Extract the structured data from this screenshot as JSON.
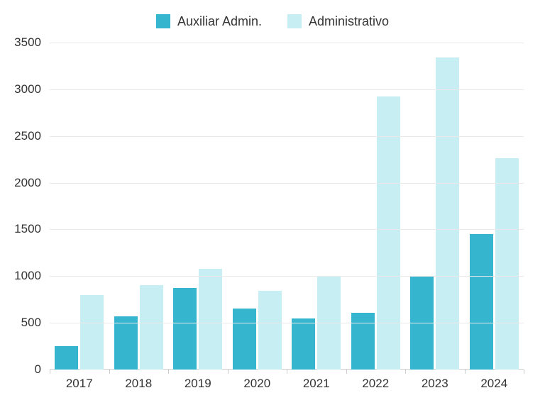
{
  "chart": {
    "type": "bar",
    "categories": [
      "2017",
      "2018",
      "2019",
      "2020",
      "2021",
      "2022",
      "2023",
      "2024"
    ],
    "series": [
      {
        "name": "Auxiliar Admin.",
        "color": "#35b6ce",
        "values": [
          250,
          570,
          870,
          650,
          550,
          610,
          1000,
          1450
        ]
      },
      {
        "name": "Administrativo",
        "color": "#c7eef3",
        "values": [
          800,
          900,
          1080,
          840,
          1000,
          2920,
          3340,
          2260
        ]
      }
    ],
    "ylim": [
      0,
      3500
    ],
    "ytick_step": 500,
    "yticks": [
      0,
      500,
      1000,
      1500,
      2000,
      2500,
      3000,
      3500
    ],
    "group_width": 0.83,
    "bar_gap": 0.04,
    "background_color": "#ffffff",
    "grid_color": "#e9e9e9",
    "axis_color": "#cccccc",
    "text_color": "#333333",
    "tick_fontsize": 17,
    "legend_fontsize": 18,
    "legend_swatch_size": 20
  }
}
